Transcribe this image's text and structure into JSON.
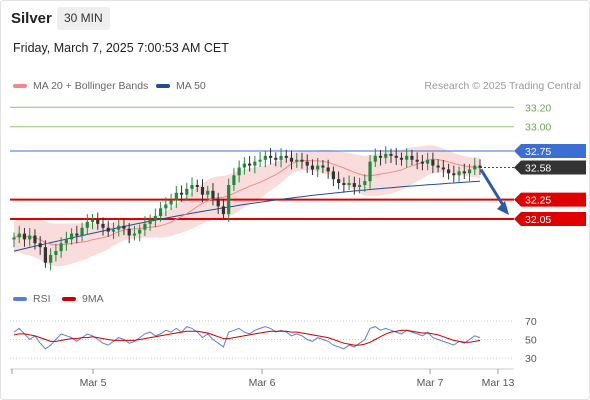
{
  "header": {
    "instrument": "Silver",
    "timeframe": "30 MIN",
    "datetime": "Friday, March 7, 2025 7:00:53 AM CET"
  },
  "legend": {
    "ma20": "MA 20 + Bollinger Bands",
    "ma50": "MA 50",
    "credit": "Research © 2025 Trading Central"
  },
  "colors": {
    "ma20": "#f08a8a",
    "ma50": "#1f4e96",
    "bollinger_fill": "#f7d2d2",
    "support": "#e00000",
    "resistance_green": "#8fc46e",
    "resistance_blue": "#3b6fd4",
    "candle_up": "#1f8a3a",
    "candle_down": "#333333",
    "rsi": "#5b7fd9",
    "rsi_ma": "#cc0000"
  },
  "chart_data": [
    {
      "type": "candlestick",
      "x_ticks": [
        "Mar 5",
        "Mar 6",
        "Mar 7",
        "Mar 13"
      ],
      "levels": [
        {
          "value": 33.2,
          "label": "33.20",
          "kind": "resistance-green"
        },
        {
          "value": 33.0,
          "label": "33.00",
          "kind": "resistance-green"
        },
        {
          "value": 32.75,
          "label": "32.75",
          "kind": "resistance-blue"
        },
        {
          "value": 32.58,
          "label": "32.58",
          "kind": "last-price"
        },
        {
          "value": 32.25,
          "label": "32.25",
          "kind": "support"
        },
        {
          "value": 32.05,
          "label": "32.05",
          "kind": "support"
        }
      ],
      "close": [
        31.86,
        31.9,
        31.84,
        31.88,
        31.8,
        31.76,
        31.6,
        31.68,
        31.72,
        31.8,
        31.84,
        31.9,
        31.88,
        31.96,
        32.02,
        32.04,
        32.0,
        31.96,
        31.92,
        31.94,
        31.98,
        31.95,
        31.88,
        31.9,
        31.94,
        32.0,
        32.04,
        32.08,
        32.16,
        32.2,
        32.24,
        32.32,
        32.3,
        32.36,
        32.4,
        32.38,
        32.3,
        32.34,
        32.26,
        32.18,
        32.1,
        32.4,
        32.5,
        32.58,
        32.62,
        32.6,
        32.64,
        32.66,
        32.7,
        32.68,
        32.66,
        32.7,
        32.68,
        32.64,
        32.66,
        32.64,
        32.6,
        32.56,
        32.6,
        32.58,
        32.54,
        32.46,
        32.42,
        32.4,
        32.42,
        32.38,
        32.4,
        32.44,
        32.64,
        32.7,
        32.68,
        32.72,
        32.7,
        32.68,
        32.66,
        32.7,
        32.66,
        32.64,
        32.62,
        32.66,
        32.6,
        32.58,
        32.56,
        32.52,
        32.5,
        32.54,
        32.52,
        32.56,
        32.6,
        32.58
      ],
      "ma20_first": 31.78,
      "ma20_last": 32.58,
      "ma50_first": 31.72,
      "ma50_last": 32.56,
      "forecast_target": 32.05
    },
    {
      "type": "line",
      "legend": [
        "RSI",
        "9MA"
      ],
      "y_ticks": [
        "70",
        "50",
        "30"
      ],
      "ylim": [
        20,
        80
      ],
      "rsi": [
        58,
        62,
        56,
        50,
        54,
        46,
        40,
        44,
        50,
        56,
        54,
        52,
        48,
        52,
        56,
        54,
        50,
        46,
        44,
        48,
        52,
        50,
        46,
        48,
        52,
        56,
        58,
        54,
        56,
        60,
        58,
        62,
        58,
        64,
        62,
        58,
        52,
        56,
        50,
        46,
        42,
        58,
        60,
        62,
        58,
        56,
        60,
        62,
        64,
        62,
        58,
        60,
        58,
        54,
        56,
        54,
        50,
        48,
        52,
        50,
        48,
        44,
        42,
        40,
        44,
        42,
        46,
        50,
        62,
        64,
        60,
        62,
        60,
        58,
        56,
        60,
        58,
        56,
        54,
        58,
        52,
        50,
        48,
        46,
        44,
        48,
        46,
        50,
        54,
        52
      ],
      "rsi_ma": [
        55,
        56,
        56,
        55,
        54,
        52,
        50,
        48,
        48,
        49,
        50,
        51,
        51,
        52,
        52,
        53,
        52,
        51,
        50,
        49,
        49,
        49,
        49,
        49,
        50,
        51,
        52,
        53,
        54,
        55,
        56,
        57,
        58,
        59,
        59,
        59,
        58,
        57,
        55,
        53,
        51,
        51,
        52,
        53,
        54,
        55,
        56,
        57,
        58,
        59,
        59,
        59,
        59,
        58,
        58,
        57,
        56,
        55,
        54,
        53,
        52,
        50,
        48,
        46,
        45,
        44,
        44,
        45,
        47,
        50,
        53,
        56,
        58,
        59,
        60,
        60,
        59,
        58,
        57,
        57,
        56,
        55,
        53,
        51,
        49,
        48,
        47,
        47,
        48,
        49
      ]
    }
  ]
}
